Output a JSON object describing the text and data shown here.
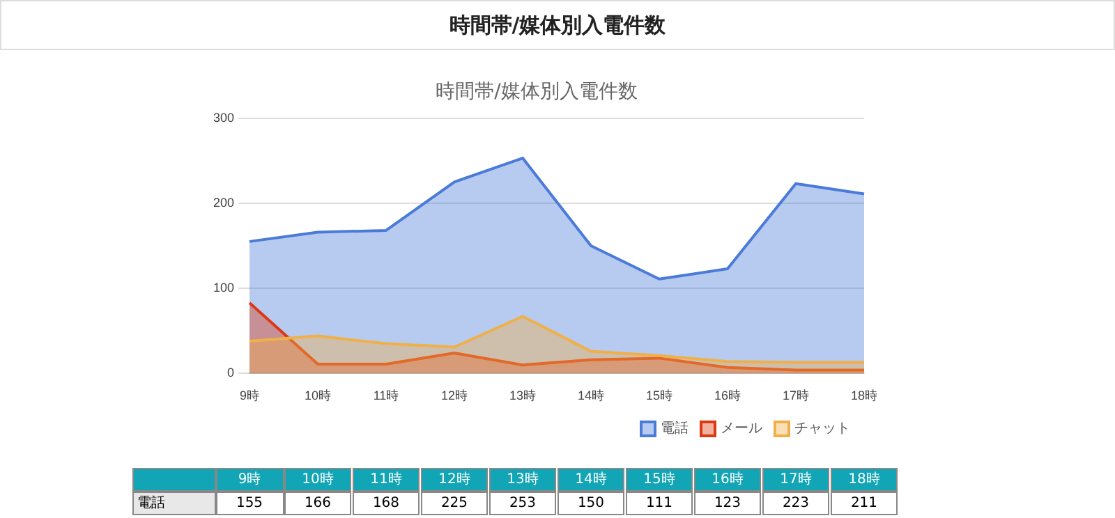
{
  "chart_data": {
    "type": "area",
    "title": "時間帯/媒体別入電件数",
    "subtitle": "時間帯/媒体別入電件数",
    "categories": [
      "9時",
      "10時",
      "11時",
      "12時",
      "13時",
      "14時",
      "15時",
      "16時",
      "17時",
      "18時"
    ],
    "series": [
      {
        "name": "電話",
        "color": "#4a7bd8",
        "values": [
          155,
          166,
          168,
          225,
          253,
          150,
          111,
          123,
          223,
          211
        ],
        "value_labels": [
          "155",
          "166",
          "168",
          "225",
          "253",
          "150",
          "111",
          "123",
          "223",
          "211"
        ]
      },
      {
        "name": "メール",
        "color": "#dc3912",
        "values": [
          83,
          11,
          11,
          24,
          10,
          16,
          18,
          7,
          4,
          4
        ]
      },
      {
        "name": "チャット",
        "color": "#f0b048",
        "values": [
          38,
          44,
          35,
          31,
          67,
          26,
          21,
          14,
          13,
          13
        ]
      }
    ],
    "ylim": [
      0,
      300
    ],
    "yticks": [
      0,
      100,
      200,
      300
    ],
    "grid": "y",
    "legend": "bottom right",
    "marker": "none",
    "line_style": "solid"
  }
}
